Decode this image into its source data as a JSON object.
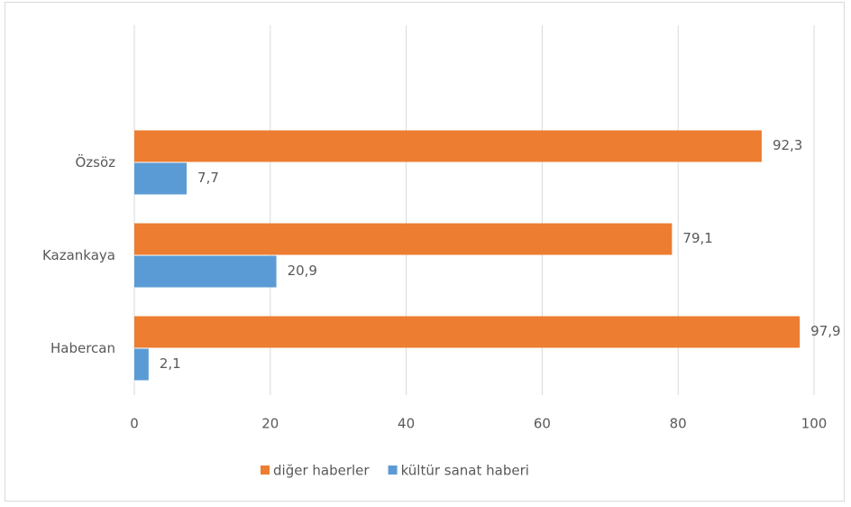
{
  "chart_data": {
    "type": "bar",
    "orientation": "horizontal",
    "categories": [
      "Habercan",
      "Kazankaya",
      "Özsöz"
    ],
    "series": [
      {
        "name": "diğer haberler",
        "color": "#ed7d31",
        "values": [
          97.9,
          79.1,
          92.3
        ],
        "value_labels": [
          "97,9",
          "79,1",
          "92,3"
        ]
      },
      {
        "name": "kültür sanat haberi",
        "color": "#5b9bd5",
        "values": [
          2.1,
          20.9,
          7.7
        ],
        "value_labels": [
          "2,1",
          "20,9",
          "7,7"
        ]
      }
    ],
    "xlim": [
      0,
      100
    ],
    "xticks": [
      0,
      20,
      40,
      60,
      80,
      100
    ],
    "grid": true,
    "legend": "bottom"
  }
}
